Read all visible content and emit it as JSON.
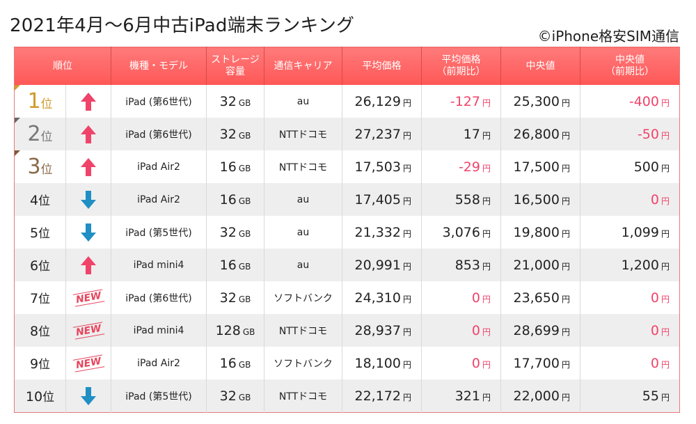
{
  "title": "2021年4月〜6月中古iPad端末ランキング",
  "credit": "©iPhone格安SIM通信",
  "colors": {
    "header": "#ff5f5f",
    "up": "#f0436a",
    "down": "#1f8fc4",
    "negative": "#f0436a"
  },
  "headers": {
    "rank": "順位",
    "model": "機種・モデル",
    "storage_1": "ストレージ",
    "storage_2": "容量",
    "carrier": "通信キャリア",
    "avg": "平均価格",
    "avg_change_1": "平均価格",
    "avg_change_2": "（前期比）",
    "median": "中央値",
    "median_change_1": "中央値",
    "median_change_2": "（前期比）"
  },
  "rows": [
    {
      "rank": "1",
      "rank_unit": "位",
      "trend": "up",
      "model": "iPad (第6世代)",
      "storage": "32",
      "storage_unit": "GB",
      "carrier": "au",
      "avg": "26,129",
      "avg_change": "-127",
      "median": "25,300",
      "median_change": "-400",
      "yen": "円"
    },
    {
      "rank": "2",
      "rank_unit": "位",
      "trend": "up",
      "model": "iPad (第6世代)",
      "storage": "32",
      "storage_unit": "GB",
      "carrier": "NTTドコモ",
      "avg": "27,237",
      "avg_change": "17",
      "median": "26,800",
      "median_change": "-50",
      "yen": "円"
    },
    {
      "rank": "3",
      "rank_unit": "位",
      "trend": "up",
      "model": "iPad Air2",
      "storage": "16",
      "storage_unit": "GB",
      "carrier": "NTTドコモ",
      "avg": "17,503",
      "avg_change": "-29",
      "median": "17,500",
      "median_change": "500",
      "yen": "円"
    },
    {
      "rank": "4",
      "rank_unit": "位",
      "trend": "down",
      "model": "iPad Air2",
      "storage": "16",
      "storage_unit": "GB",
      "carrier": "au",
      "avg": "17,405",
      "avg_change": "558",
      "median": "16,500",
      "median_change": "0",
      "yen": "円"
    },
    {
      "rank": "5",
      "rank_unit": "位",
      "trend": "down",
      "model": "iPad (第5世代)",
      "storage": "32",
      "storage_unit": "GB",
      "carrier": "au",
      "avg": "21,332",
      "avg_change": "3,076",
      "median": "19,800",
      "median_change": "1,099",
      "yen": "円"
    },
    {
      "rank": "6",
      "rank_unit": "位",
      "trend": "up",
      "model": "iPad mini4",
      "storage": "16",
      "storage_unit": "GB",
      "carrier": "au",
      "avg": "20,991",
      "avg_change": "853",
      "median": "21,000",
      "median_change": "1,200",
      "yen": "円"
    },
    {
      "rank": "7",
      "rank_unit": "位",
      "trend": "new",
      "model": "iPad (第6世代)",
      "storage": "32",
      "storage_unit": "GB",
      "carrier": "ソフトバンク",
      "avg": "24,310",
      "avg_change": "0",
      "median": "23,650",
      "median_change": "0",
      "yen": "円"
    },
    {
      "rank": "8",
      "rank_unit": "位",
      "trend": "new",
      "model": "iPad mini4",
      "storage": "128",
      "storage_unit": "GB",
      "carrier": "NTTドコモ",
      "avg": "28,937",
      "avg_change": "0",
      "median": "28,699",
      "median_change": "0",
      "yen": "円"
    },
    {
      "rank": "9",
      "rank_unit": "位",
      "trend": "new",
      "model": "iPad Air2",
      "storage": "16",
      "storage_unit": "GB",
      "carrier": "ソフトバンク",
      "avg": "18,100",
      "avg_change": "0",
      "median": "17,700",
      "median_change": "0",
      "yen": "円"
    },
    {
      "rank": "10",
      "rank_unit": "位",
      "trend": "down",
      "model": "iPad (第5世代)",
      "storage": "32",
      "storage_unit": "GB",
      "carrier": "NTTドコモ",
      "avg": "22,172",
      "avg_change": "321",
      "median": "22,000",
      "median_change": "55",
      "yen": "円"
    }
  ],
  "new_label": "NEW",
  "pink_changes": {
    "avg": [
      0,
      2,
      6,
      7,
      8
    ],
    "median": [
      0,
      1,
      3,
      6,
      7,
      8
    ]
  }
}
